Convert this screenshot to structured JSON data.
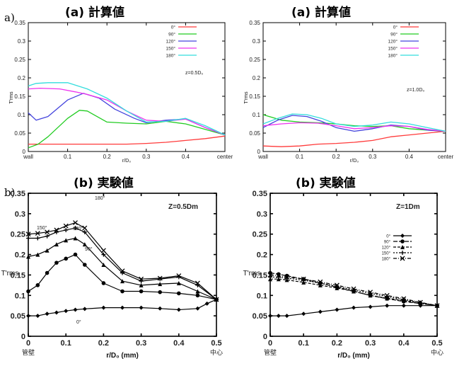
{
  "row_labels": [
    "a)",
    "b)"
  ],
  "panel_headers": [
    "(a) 計算値",
    "(a) 計算値",
    "(b) 実験値",
    "(b) 実験値"
  ],
  "chart_data": [
    {
      "type": "line",
      "title": "(a) 計算値",
      "xlabel": "r/D₀",
      "ylabel": "T'rms",
      "xlim": [
        0,
        0.5
      ],
      "ylim": [
        0,
        0.35
      ],
      "xticks": [
        "wall",
        "0.1",
        "0.2",
        "0.3",
        "0.4",
        "center"
      ],
      "yticks": [
        "0",
        "0.05",
        "0.1",
        "0.15",
        "0.2",
        "0.25",
        "0.3",
        "0.35"
      ],
      "annotation": "z=0.5D₀",
      "legend_position": "top-right",
      "series": [
        {
          "name": "0°",
          "color": "#ff3b3b",
          "x": [
            0,
            0.05,
            0.1,
            0.15,
            0.2,
            0.25,
            0.3,
            0.35,
            0.4,
            0.45,
            0.5
          ],
          "y": [
            0.02,
            0.02,
            0.02,
            0.02,
            0.02,
            0.02,
            0.022,
            0.025,
            0.03,
            0.035,
            0.042
          ]
        },
        {
          "name": "90°",
          "color": "#22cc22",
          "x": [
            0,
            0.025,
            0.05,
            0.1,
            0.13,
            0.15,
            0.2,
            0.25,
            0.3,
            0.35,
            0.4,
            0.45,
            0.5
          ],
          "y": [
            0.01,
            0.02,
            0.04,
            0.09,
            0.112,
            0.11,
            0.08,
            0.077,
            0.075,
            0.082,
            0.075,
            0.06,
            0.045
          ]
        },
        {
          "name": "120°",
          "color": "#4444dd",
          "x": [
            0,
            0.02,
            0.05,
            0.1,
            0.14,
            0.18,
            0.22,
            0.27,
            0.3,
            0.35,
            0.4,
            0.45,
            0.5
          ],
          "y": [
            0.105,
            0.085,
            0.095,
            0.14,
            0.158,
            0.145,
            0.115,
            0.09,
            0.078,
            0.085,
            0.088,
            0.065,
            0.045
          ]
        },
        {
          "name": "150°",
          "color": "#ee33ee",
          "x": [
            0,
            0.03,
            0.08,
            0.12,
            0.15,
            0.2,
            0.25,
            0.3,
            0.35,
            0.4,
            0.45,
            0.5
          ],
          "y": [
            0.17,
            0.172,
            0.17,
            0.162,
            0.155,
            0.14,
            0.11,
            0.085,
            0.082,
            0.088,
            0.065,
            0.045
          ]
        },
        {
          "name": "180°",
          "color": "#33dddd",
          "x": [
            0,
            0.02,
            0.05,
            0.1,
            0.15,
            0.2,
            0.25,
            0.3,
            0.35,
            0.4,
            0.45,
            0.5
          ],
          "y": [
            0.178,
            0.185,
            0.187,
            0.187,
            0.17,
            0.145,
            0.11,
            0.08,
            0.082,
            0.09,
            0.07,
            0.045
          ]
        }
      ]
    },
    {
      "type": "line",
      "title": "(a) 計算値",
      "xlabel": "r/D₀",
      "ylabel": "T'rms",
      "xlim": [
        0,
        0.5
      ],
      "ylim": [
        0,
        0.35
      ],
      "xticks": [
        "wall",
        "0.1",
        "0.2",
        "0.3",
        "0.4",
        "center"
      ],
      "yticks": [
        "0",
        "0.05",
        "0.1",
        "0.15",
        "0.2",
        "0.25",
        "0.3",
        "0.35"
      ],
      "annotation": "z=1.0D₀",
      "legend_position": "top-right",
      "series": [
        {
          "name": "0°",
          "color": "#ff3b3b",
          "x": [
            0,
            0.05,
            0.1,
            0.15,
            0.2,
            0.25,
            0.3,
            0.35,
            0.4,
            0.45,
            0.5
          ],
          "y": [
            0.015,
            0.013,
            0.015,
            0.02,
            0.022,
            0.025,
            0.03,
            0.04,
            0.045,
            0.05,
            0.055
          ]
        },
        {
          "name": "90°",
          "color": "#22cc22",
          "x": [
            0,
            0.05,
            0.1,
            0.15,
            0.2,
            0.25,
            0.3,
            0.35,
            0.4,
            0.45,
            0.5
          ],
          "y": [
            0.1,
            0.085,
            0.08,
            0.078,
            0.075,
            0.07,
            0.068,
            0.07,
            0.062,
            0.058,
            0.055
          ]
        },
        {
          "name": "120°",
          "color": "#4444dd",
          "x": [
            0,
            0.04,
            0.08,
            0.12,
            0.16,
            0.2,
            0.25,
            0.3,
            0.35,
            0.4,
            0.45,
            0.5
          ],
          "y": [
            0.065,
            0.085,
            0.098,
            0.095,
            0.082,
            0.065,
            0.055,
            0.062,
            0.072,
            0.068,
            0.058,
            0.055
          ]
        },
        {
          "name": "150°",
          "color": "#ee33ee",
          "x": [
            0,
            0.05,
            0.1,
            0.15,
            0.2,
            0.25,
            0.3,
            0.35,
            0.4,
            0.45,
            0.5
          ],
          "y": [
            0.07,
            0.075,
            0.078,
            0.077,
            0.07,
            0.062,
            0.065,
            0.07,
            0.068,
            0.06,
            0.055
          ]
        },
        {
          "name": "180°",
          "color": "#33dddd",
          "x": [
            0,
            0.04,
            0.08,
            0.12,
            0.16,
            0.2,
            0.25,
            0.3,
            0.35,
            0.4,
            0.45,
            0.5
          ],
          "y": [
            0.075,
            0.09,
            0.102,
            0.1,
            0.09,
            0.075,
            0.068,
            0.072,
            0.08,
            0.075,
            0.065,
            0.055
          ]
        }
      ]
    },
    {
      "type": "line",
      "title": "(b) 実験値",
      "xlabel": "r/D₀ (mm)",
      "ylabel": "T'rms",
      "xlim": [
        0,
        0.5
      ],
      "ylim": [
        0,
        0.35
      ],
      "xticks": [
        "0",
        "0.1",
        "0.2",
        "0.3",
        "0.4",
        "0.5"
      ],
      "xtick_sublabels": [
        "管壁",
        "中心"
      ],
      "yticks": [
        "0",
        "0.05",
        "0.1",
        "0.15",
        "0.2",
        "0.25",
        "0.3",
        "0.35"
      ],
      "annotation": "Z=0.5Dm",
      "series": [
        {
          "name": "0°",
          "label_on_chart": "0°",
          "marker": "diamond",
          "x": [
            0,
            0.025,
            0.05,
            0.075,
            0.1,
            0.125,
            0.15,
            0.2,
            0.25,
            0.3,
            0.35,
            0.4,
            0.45,
            0.475,
            0.5
          ],
          "y": [
            0.05,
            0.05,
            0.055,
            0.058,
            0.062,
            0.065,
            0.067,
            0.07,
            0.07,
            0.07,
            0.068,
            0.065,
            0.068,
            0.08,
            0.09
          ]
        },
        {
          "name": "90°",
          "label_on_chart": "90°",
          "marker": "circle",
          "x": [
            0,
            0.025,
            0.05,
            0.075,
            0.1,
            0.125,
            0.15,
            0.2,
            0.25,
            0.3,
            0.35,
            0.4,
            0.45,
            0.5
          ],
          "y": [
            0.11,
            0.125,
            0.155,
            0.18,
            0.19,
            0.2,
            0.175,
            0.13,
            0.11,
            0.11,
            0.108,
            0.105,
            0.1,
            0.09
          ]
        },
        {
          "name": "120°",
          "label_on_chart": "120°",
          "marker": "triangle",
          "x": [
            0,
            0.025,
            0.05,
            0.075,
            0.1,
            0.125,
            0.15,
            0.2,
            0.25,
            0.3,
            0.35,
            0.4,
            0.45,
            0.5
          ],
          "y": [
            0.195,
            0.2,
            0.21,
            0.225,
            0.235,
            0.24,
            0.225,
            0.175,
            0.135,
            0.125,
            0.128,
            0.13,
            0.11,
            0.09
          ]
        },
        {
          "name": "150°",
          "label_on_chart": "150°",
          "marker": "plus",
          "x": [
            0,
            0.025,
            0.05,
            0.075,
            0.1,
            0.125,
            0.15,
            0.2,
            0.25,
            0.3,
            0.35,
            0.4,
            0.45,
            0.5
          ],
          "y": [
            0.24,
            0.24,
            0.245,
            0.255,
            0.26,
            0.265,
            0.255,
            0.2,
            0.155,
            0.135,
            0.14,
            0.145,
            0.125,
            0.09
          ]
        },
        {
          "name": "180°",
          "label_on_chart": "180°",
          "marker": "x",
          "x": [
            0,
            0.025,
            0.05,
            0.075,
            0.1,
            0.125,
            0.15,
            0.2,
            0.25,
            0.3,
            0.35,
            0.4,
            0.45,
            0.5
          ],
          "y": [
            0.25,
            0.252,
            0.255,
            0.26,
            0.27,
            0.278,
            0.265,
            0.21,
            0.16,
            0.14,
            0.142,
            0.148,
            0.13,
            0.09
          ]
        }
      ]
    },
    {
      "type": "line",
      "title": "(b) 実験値",
      "xlabel": "r/D₀ (mm)",
      "ylabel": "T'rms",
      "xlim": [
        0,
        0.5
      ],
      "ylim": [
        0,
        0.35
      ],
      "xticks": [
        "0",
        "0.1",
        "0.2",
        "0.3",
        "0.4",
        "0.5"
      ],
      "xtick_sublabels": [
        "管壁",
        "中心"
      ],
      "yticks": [
        "0",
        "0.05",
        "0.1",
        "0.15",
        "0.2",
        "0.25",
        "0.3",
        "0.35"
      ],
      "annotation": "Z=1Dm",
      "legend_position": "right",
      "series": [
        {
          "name": "0°",
          "marker": "diamond",
          "dash": "",
          "x": [
            0,
            0.025,
            0.05,
            0.1,
            0.15,
            0.2,
            0.25,
            0.3,
            0.35,
            0.4,
            0.45,
            0.5
          ],
          "y": [
            0.05,
            0.05,
            0.05,
            0.055,
            0.06,
            0.065,
            0.07,
            0.072,
            0.075,
            0.075,
            0.075,
            0.075
          ]
        },
        {
          "name": "90°",
          "marker": "circle",
          "dash": "6,2",
          "x": [
            0,
            0.025,
            0.05,
            0.1,
            0.15,
            0.2,
            0.25,
            0.3,
            0.35,
            0.4,
            0.45,
            0.5
          ],
          "y": [
            0.155,
            0.152,
            0.148,
            0.14,
            0.13,
            0.12,
            0.11,
            0.1,
            0.092,
            0.085,
            0.08,
            0.075
          ]
        },
        {
          "name": "120°",
          "marker": "triangle",
          "dash": "4,2",
          "x": [
            0,
            0.025,
            0.05,
            0.1,
            0.15,
            0.2,
            0.25,
            0.3,
            0.35,
            0.4,
            0.45,
            0.5
          ],
          "y": [
            0.14,
            0.14,
            0.138,
            0.132,
            0.125,
            0.118,
            0.11,
            0.1,
            0.093,
            0.088,
            0.08,
            0.075
          ]
        },
        {
          "name": "150°",
          "marker": "plus",
          "dash": "2,2",
          "x": [
            0,
            0.025,
            0.05,
            0.1,
            0.15,
            0.2,
            0.25,
            0.3,
            0.35,
            0.4,
            0.45,
            0.5
          ],
          "y": [
            0.145,
            0.145,
            0.142,
            0.137,
            0.13,
            0.122,
            0.113,
            0.105,
            0.097,
            0.09,
            0.082,
            0.075
          ]
        },
        {
          "name": "180°",
          "marker": "x",
          "dash": "5,2,1,2",
          "x": [
            0,
            0.025,
            0.05,
            0.1,
            0.15,
            0.2,
            0.25,
            0.3,
            0.35,
            0.4,
            0.45,
            0.5
          ],
          "y": [
            0.15,
            0.148,
            0.145,
            0.14,
            0.133,
            0.125,
            0.116,
            0.108,
            0.1,
            0.092,
            0.083,
            0.075
          ]
        }
      ]
    }
  ]
}
